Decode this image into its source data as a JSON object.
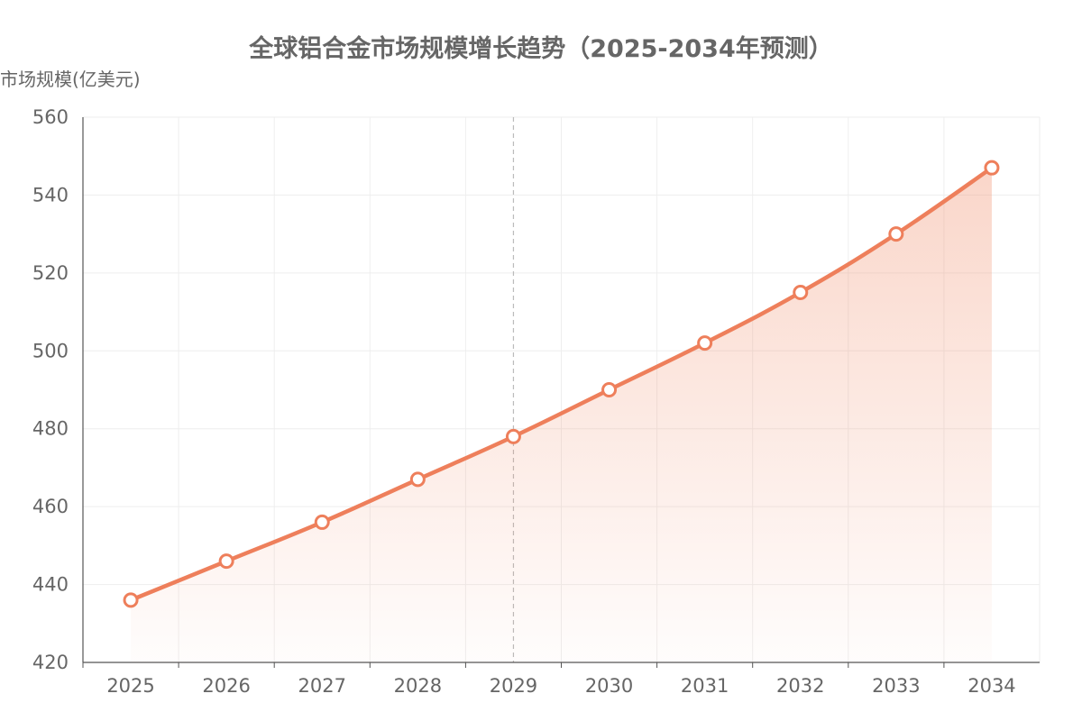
{
  "chart_data": {
    "type": "line",
    "area": true,
    "smooth": true,
    "title": "全球铝合金市场规模增长趋势（2025-2034年预测）",
    "ylabel": "市场规模(亿美元)",
    "xlabel": "",
    "categories": [
      "2025",
      "2026",
      "2027",
      "2028",
      "2029",
      "2030",
      "2031",
      "2032",
      "2033",
      "2034"
    ],
    "values": [
      436,
      446,
      456,
      467,
      478,
      490,
      502,
      515,
      530,
      547
    ],
    "ylim": [
      420,
      560
    ],
    "yticks": [
      420,
      440,
      460,
      480,
      500,
      520,
      540,
      560
    ],
    "grid": true,
    "highlighted_category": "2029",
    "colors": {
      "line": "#ee7f5b",
      "area": "#f08a66",
      "grid": "#eeeeee",
      "axis": "#555555",
      "text": "#666666"
    }
  }
}
